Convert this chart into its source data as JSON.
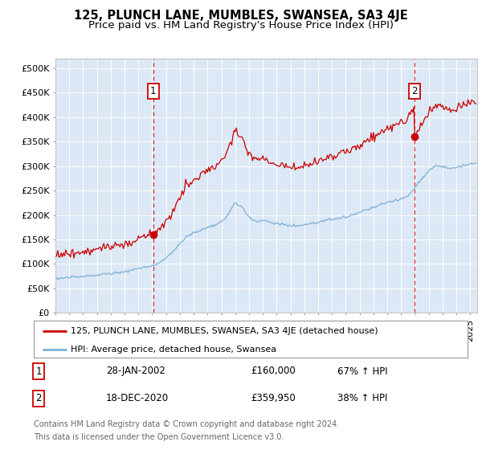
{
  "title": "125, PLUNCH LANE, MUMBLES, SWANSEA, SA3 4JE",
  "subtitle": "Price paid vs. HM Land Registry's House Price Index (HPI)",
  "yticks": [
    0,
    50000,
    100000,
    150000,
    200000,
    250000,
    300000,
    350000,
    400000,
    450000,
    500000
  ],
  "ytick_labels": [
    "£0",
    "£50K",
    "£100K",
    "£150K",
    "£200K",
    "£250K",
    "£300K",
    "£350K",
    "£400K",
    "£450K",
    "£500K"
  ],
  "xlim_start": 1995.0,
  "xlim_end": 2025.5,
  "ylim_bottom": 0,
  "ylim_top": 520000,
  "bg_color": "#dce8f5",
  "fig_bg_color": "#ffffff",
  "grid_color": "#ffffff",
  "red_line_color": "#cc0000",
  "blue_line_color": "#7ab0d8",
  "sale1_x": 2002.08,
  "sale1_y": 160000,
  "sale2_x": 2020.96,
  "sale2_y": 359950,
  "legend_label_red": "125, PLUNCH LANE, MUMBLES, SWANSEA, SA3 4JE (detached house)",
  "legend_label_blue": "HPI: Average price, detached house, Swansea",
  "table_row1": [
    "1",
    "28-JAN-2002",
    "£160,000",
    "67% ↑ HPI"
  ],
  "table_row2": [
    "2",
    "18-DEC-2020",
    "£359,950",
    "38% ↑ HPI"
  ],
  "footer_line1": "Contains HM Land Registry data © Crown copyright and database right 2024.",
  "footer_line2": "This data is licensed under the Open Government Licence v3.0.",
  "title_fontsize": 10.5,
  "subtitle_fontsize": 9.5,
  "tick_fontsize": 8,
  "legend_fontsize": 8,
  "table_fontsize": 8.5,
  "footer_fontsize": 7
}
